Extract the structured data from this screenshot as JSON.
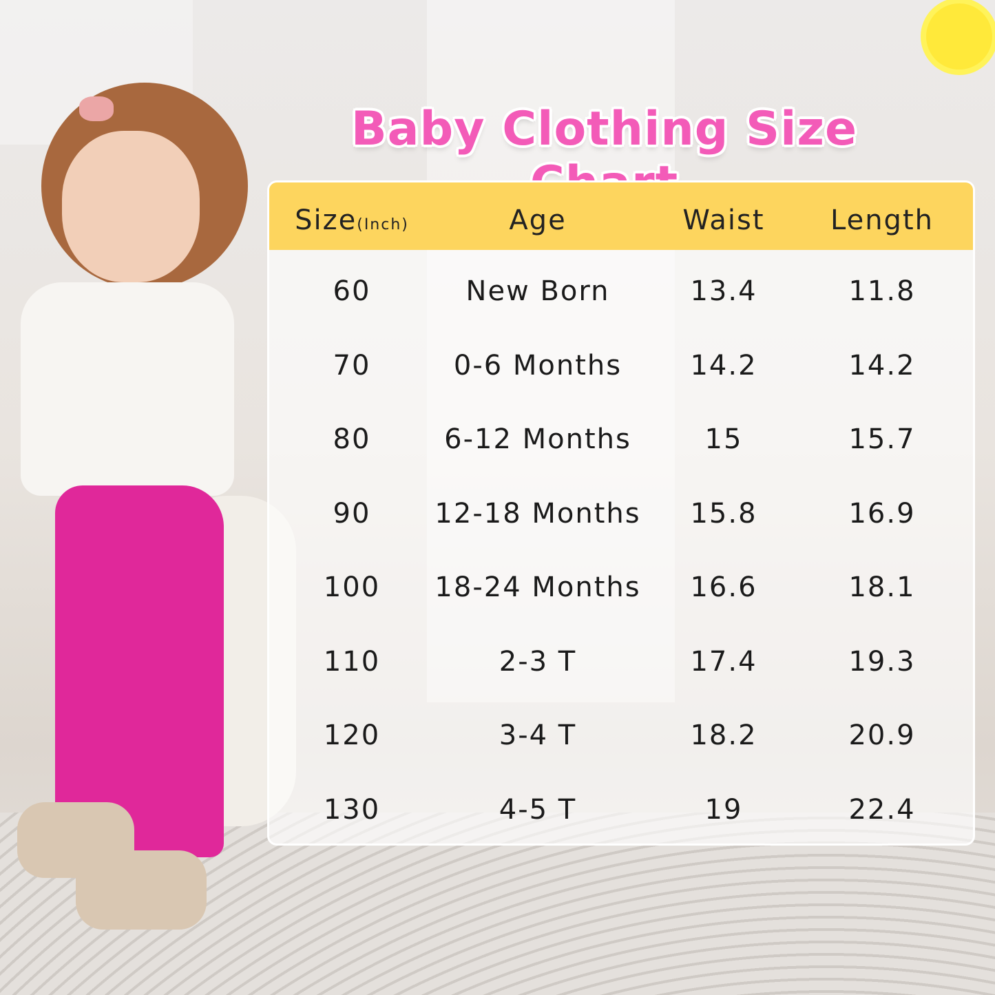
{
  "title": "Baby Clothing Size Chart",
  "accent_colors": {
    "title": "#f35bb8",
    "header": "#fdd55e",
    "leggings": "#e0289a"
  },
  "icons": [
    "sun-icon"
  ],
  "table": {
    "headers": [
      {
        "label": "Size",
        "sub": "(Inch)"
      },
      {
        "label": "Age",
        "sub": ""
      },
      {
        "label": "Waist",
        "sub": ""
      },
      {
        "label": "Length",
        "sub": ""
      }
    ],
    "rows": [
      [
        "60",
        "New Born",
        "13.4",
        "11.8"
      ],
      [
        "70",
        "0-6 Months",
        "14.2",
        "14.2"
      ],
      [
        "80",
        "6-12 Months",
        "15",
        "15.7"
      ],
      [
        "90",
        "12-18 Months",
        "15.8",
        "16.9"
      ],
      [
        "100",
        "18-24 Months",
        "16.6",
        "18.1"
      ],
      [
        "110",
        "2-3 T",
        "17.4",
        "19.3"
      ],
      [
        "120",
        "3-4 T",
        "18.2",
        "20.9"
      ],
      [
        "130",
        "4-5 T",
        "19",
        "22.4"
      ]
    ]
  }
}
